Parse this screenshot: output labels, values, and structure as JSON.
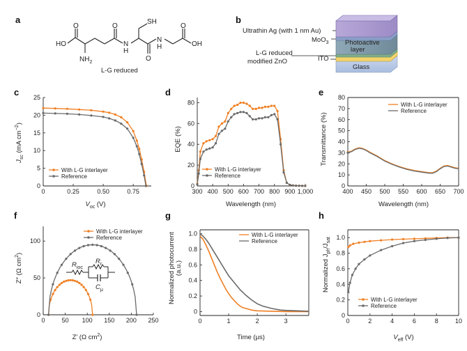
{
  "colors": {
    "orange": "#f07f22",
    "gray": "#6a6a6a",
    "axis": "#222222"
  },
  "panel_a": {
    "letter": "a",
    "caption": "L-G reduced",
    "atoms": {
      "ho_left": "HO",
      "nh2": "NH",
      "nh2_sub": "2",
      "n1": "N",
      "h1": "H",
      "n2": "N",
      "h2": "H",
      "sh": "SH",
      "oh_right": "OH",
      "o": "O"
    }
  },
  "panel_b": {
    "letter": "b",
    "layers": [
      "Ultrathin Ag (with 1 nm Au)",
      "MoO",
      "Photoactive",
      "layer",
      "Glass",
      "ITO"
    ],
    "moo3_sub": "3",
    "zno_label_1": "L-G reduced",
    "zno_label_2": "modified ZnO"
  },
  "chart_data": [
    {
      "id": "c",
      "type": "line",
      "letter": "c",
      "xlabel_main": "V",
      "xlabel_sub": "oc",
      "xlabel_unit": " (V)",
      "ylabel_main": "J",
      "ylabel_sub": "sc",
      "ylabel_unit": " (mA cm",
      "ylabel_sup": "−2",
      "ylabel_end": ")",
      "xlim": [
        0,
        0.9
      ],
      "ylim": [
        0,
        25
      ],
      "xticks": [
        0,
        0.25,
        0.5,
        0.75
      ],
      "xticklabels": [
        "0",
        "0.25",
        "0.50",
        "0.75"
      ],
      "yticks": [
        0,
        5,
        10,
        15,
        20,
        25
      ],
      "yticklabels": [
        "0",
        "5",
        "10",
        "15",
        "20",
        "25"
      ],
      "legend": {
        "with": "With L-G interlayer",
        "ref": "Reference"
      },
      "series": [
        {
          "name": "With L-G interlayer",
          "key": "with",
          "x": [
            0,
            0.1,
            0.2,
            0.3,
            0.4,
            0.5,
            0.55,
            0.6,
            0.65,
            0.7,
            0.75,
            0.78,
            0.8,
            0.82,
            0.84,
            0.86
          ],
          "y": [
            22.0,
            21.9,
            21.8,
            21.6,
            21.4,
            21.0,
            20.7,
            20.2,
            19.4,
            18.0,
            15.5,
            12.8,
            10.5,
            7.5,
            4.0,
            0
          ]
        },
        {
          "name": "Reference",
          "key": "ref",
          "x": [
            0,
            0.1,
            0.2,
            0.3,
            0.4,
            0.5,
            0.55,
            0.6,
            0.65,
            0.7,
            0.75,
            0.78,
            0.8,
            0.82,
            0.84,
            0.855
          ],
          "y": [
            20.6,
            20.5,
            20.4,
            20.2,
            19.9,
            19.5,
            19.1,
            18.5,
            17.6,
            16.2,
            13.6,
            11.2,
            9.0,
            6.2,
            3.0,
            0
          ]
        }
      ]
    },
    {
      "id": "d",
      "type": "line",
      "letter": "d",
      "xlabel": "Wavelength (nm)",
      "ylabel": "EQE (%)",
      "xlim": [
        300,
        1000
      ],
      "ylim": [
        0,
        85
      ],
      "xticks": [
        300,
        400,
        500,
        600,
        700,
        800,
        900,
        1000
      ],
      "xticklabels": [
        "300",
        "400",
        "500",
        "600",
        "700",
        "800",
        "900",
        "1,000"
      ],
      "yticks": [
        0,
        20,
        40,
        60,
        80
      ],
      "yticklabels": [
        "0",
        "20",
        "40",
        "60",
        "80"
      ],
      "legend": {
        "with": "With L-G interlayer",
        "ref": "Reference"
      },
      "series": [
        {
          "name": "With L-G interlayer",
          "key": "with",
          "x": [
            300,
            310,
            320,
            340,
            360,
            380,
            400,
            420,
            440,
            460,
            480,
            500,
            520,
            540,
            560,
            580,
            600,
            620,
            640,
            660,
            680,
            700,
            720,
            740,
            760,
            780,
            800,
            820,
            840,
            860,
            880,
            900,
            920,
            940,
            960,
            980,
            1000
          ],
          "y": [
            2,
            15,
            33,
            41,
            43,
            44,
            45,
            48,
            57,
            60,
            62,
            70,
            74,
            77,
            78,
            80,
            80,
            79,
            77,
            74,
            74,
            75,
            75,
            76,
            76,
            77,
            77,
            72,
            45,
            15,
            3,
            1,
            0.5,
            0.3,
            0.2,
            0.1,
            0
          ]
        },
        {
          "name": "Reference",
          "key": "ref",
          "x": [
            300,
            310,
            320,
            340,
            360,
            380,
            400,
            420,
            440,
            460,
            480,
            500,
            520,
            540,
            560,
            580,
            600,
            620,
            640,
            660,
            680,
            700,
            720,
            740,
            760,
            780,
            800,
            820,
            840,
            860,
            880,
            900,
            920,
            940,
            960,
            980,
            1000
          ],
          "y": [
            1.5,
            12,
            26,
            33,
            35,
            36,
            37,
            41,
            50,
            53,
            55,
            62,
            66,
            69,
            70,
            71,
            71,
            70,
            67,
            64,
            64,
            65,
            65,
            66,
            66,
            68,
            69,
            64,
            40,
            13,
            3,
            1,
            0.5,
            0.3,
            0.2,
            0.1,
            0
          ]
        }
      ]
    },
    {
      "id": "e",
      "type": "line",
      "letter": "e",
      "xlabel": "Wavelength (nm)",
      "ylabel": "Transmittance (%)",
      "xlim": [
        400,
        700
      ],
      "ylim": [
        0,
        80
      ],
      "xticks": [
        400,
        450,
        500,
        550,
        600,
        650,
        700
      ],
      "xticklabels": [
        "400",
        "450",
        "500",
        "550",
        "600",
        "650",
        "700"
      ],
      "yticks": [
        0,
        10,
        20,
        30,
        40,
        50,
        60,
        70,
        80
      ],
      "yticklabels": [
        "0",
        "10",
        "20",
        "30",
        "40",
        "50",
        "60",
        "70",
        "80"
      ],
      "legend": {
        "with": "With L-G interlayer",
        "ref": "Reference"
      },
      "series": [
        {
          "name": "With L-G interlayer",
          "key": "with",
          "x": [
            400,
            410,
            420,
            430,
            440,
            450,
            460,
            480,
            500,
            520,
            540,
            560,
            580,
            600,
            620,
            630,
            640,
            650,
            660,
            670,
            680,
            690,
            700
          ],
          "y": [
            30.5,
            31.5,
            33.5,
            34.5,
            34,
            32.5,
            30.5,
            27,
            23,
            20,
            17.5,
            15.5,
            14,
            13,
            12,
            12,
            13.5,
            16,
            18,
            18.5,
            17.5,
            16.5,
            16
          ]
        },
        {
          "name": "Reference",
          "key": "ref",
          "x": [
            400,
            410,
            420,
            430,
            440,
            450,
            460,
            480,
            500,
            520,
            540,
            560,
            580,
            600,
            620,
            630,
            640,
            650,
            660,
            670,
            680,
            690,
            700
          ],
          "y": [
            30,
            31,
            33,
            34,
            33.5,
            32,
            30,
            26.5,
            22.5,
            19.5,
            17,
            15,
            13.5,
            12.5,
            11.5,
            11.5,
            13,
            15.5,
            17.5,
            18,
            17,
            16,
            15.5
          ]
        }
      ]
    },
    {
      "id": "f",
      "type": "scatter",
      "letter": "f",
      "xlabel": "Z′ (Ω cm",
      "xlabel_sup": "2",
      "xlabel_end": ")",
      "ylabel": "Z″ (Ω cm",
      "ylabel_sup": "2",
      "ylabel_end": ")",
      "xlim": [
        0,
        250
      ],
      "ylim": [
        0,
        120
      ],
      "xticks": [
        0,
        50,
        100,
        150,
        200,
        250
      ],
      "xticklabels": [
        "0",
        "50",
        "100",
        "150",
        "200",
        "250"
      ],
      "yticks": [
        0,
        50,
        100
      ],
      "yticklabels": [
        "0",
        "50",
        "100"
      ],
      "legend": {
        "with": "With L-G interlayer",
        "ref": "Reference"
      },
      "circuit": {
        "r1": "R",
        "r1_sub": "ioc",
        "r2": "R",
        "r2_sub": "r",
        "c": "C",
        "c_sub": "μ"
      },
      "series": [
        {
          "name": "With L-G interlayer",
          "key": "with",
          "arc": {
            "r0": 12,
            "r1": 112,
            "amp": 47
          }
        },
        {
          "name": "Reference",
          "key": "ref",
          "arc": {
            "r0": 12,
            "r1": 212,
            "amp": 95
          }
        }
      ]
    },
    {
      "id": "g",
      "type": "line",
      "letter": "g",
      "xlabel": "Time (μs)",
      "ylabel_1": "Normalized photocurrent",
      "ylabel_2": "(a.u.)",
      "xlim": [
        0,
        3.8
      ],
      "ylim": [
        -0.05,
        1.05
      ],
      "xticks": [
        0,
        1,
        2,
        3
      ],
      "xticklabels": [
        "0",
        "1",
        "2",
        "3"
      ],
      "yticks": [
        0,
        0.2,
        0.4,
        0.6,
        0.8,
        1.0
      ],
      "yticklabels": [
        "0",
        "0.2",
        "0.4",
        "0.6",
        "0.8",
        "1.0"
      ],
      "legend": {
        "with": "With L-G interlayer",
        "ref": "Reference"
      },
      "series": [
        {
          "name": "With L-G interlayer",
          "key": "with",
          "x": [
            0,
            0.1,
            0.2,
            0.3,
            0.4,
            0.5,
            0.6,
            0.7,
            0.8,
            0.9,
            1.0,
            1.1,
            1.2,
            1.3,
            1.4,
            1.5,
            1.6,
            1.8,
            2.0,
            2.5,
            3.0,
            3.8
          ],
          "y": [
            0.97,
            0.93,
            0.86,
            0.78,
            0.69,
            0.6,
            0.51,
            0.43,
            0.36,
            0.29,
            0.23,
            0.18,
            0.14,
            0.1,
            0.07,
            0.05,
            0.04,
            0.02,
            0.01,
            0.005,
            0,
            0
          ]
        },
        {
          "name": "Reference",
          "key": "ref",
          "x": [
            0,
            0.1,
            0.2,
            0.3,
            0.4,
            0.5,
            0.6,
            0.7,
            0.8,
            0.9,
            1.0,
            1.2,
            1.4,
            1.6,
            1.8,
            2.0,
            2.2,
            2.5,
            2.8,
            3.0,
            3.4,
            3.8
          ],
          "y": [
            1.0,
            0.97,
            0.93,
            0.88,
            0.82,
            0.76,
            0.7,
            0.64,
            0.58,
            0.52,
            0.46,
            0.37,
            0.28,
            0.21,
            0.15,
            0.1,
            0.07,
            0.04,
            0.02,
            0.015,
            0.01,
            0.005
          ]
        }
      ]
    },
    {
      "id": "h",
      "type": "line",
      "letter": "h",
      "xlabel_main": "V",
      "xlabel_sub": "eff",
      "xlabel_unit": " (V)",
      "ylabel_main": "Normalized J",
      "ylabel_sub": "ph",
      "ylabel_mid": "/J",
      "ylabel_sub2": "sat",
      "xlim": [
        0,
        10
      ],
      "ylim": [
        0,
        1.1
      ],
      "xticks": [
        0,
        2,
        4,
        6,
        8,
        10
      ],
      "xticklabels": [
        "0",
        "2",
        "4",
        "6",
        "8",
        "10"
      ],
      "yticks": [
        0,
        0.2,
        0.4,
        0.6,
        0.8,
        1.0
      ],
      "yticklabels": [
        "0",
        "0.2",
        "0.4",
        "0.6",
        "0.8",
        "1.0"
      ],
      "legend": {
        "with": "With L-G interlayer",
        "ref": "Reference"
      },
      "series": [
        {
          "name": "With L-G interlayer",
          "key": "with",
          "x": [
            0.05,
            0.2,
            0.5,
            1,
            1.5,
            2,
            3,
            4,
            5,
            6,
            7,
            8,
            9,
            10
          ],
          "y": [
            0.88,
            0.9,
            0.92,
            0.935,
            0.945,
            0.955,
            0.965,
            0.975,
            0.98,
            0.985,
            0.99,
            0.995,
            1.0,
            1.0
          ]
        },
        {
          "name": "Reference",
          "key": "ref",
          "x": [
            0.05,
            0.2,
            0.4,
            0.7,
            1,
            1.5,
            2,
            3,
            4,
            5,
            6,
            7,
            8,
            9,
            10
          ],
          "y": [
            0.3,
            0.42,
            0.52,
            0.6,
            0.66,
            0.72,
            0.77,
            0.84,
            0.89,
            0.93,
            0.955,
            0.97,
            0.985,
            0.995,
            1.0
          ]
        }
      ]
    }
  ]
}
